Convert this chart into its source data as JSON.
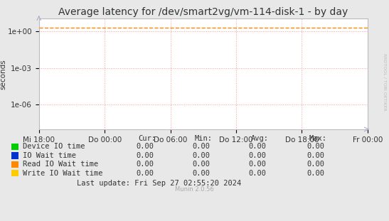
{
  "title": "Average latency for /dev/smart2vg/vm-114-disk-1 - by day",
  "ylabel": "seconds",
  "right_label": "RRDTOOL / TOBI OETIKER",
  "bg_color": "#e8e8e8",
  "plot_bg_color": "#ffffff",
  "grid_color": "#ff9999",
  "grid_linestyle": ":",
  "yticks": [
    1e-06,
    0.001,
    1.0
  ],
  "ytick_labels": [
    "1e-06",
    "1e-03",
    "1e+00"
  ],
  "xtick_labels": [
    "Mi 18:00",
    "Do 00:00",
    "Do 06:00",
    "Do 12:00",
    "Do 18:00",
    "Fr 00:00"
  ],
  "dashed_line_value": 2.0,
  "dashed_line_color": "#ff8800",
  "dashed_line_style": "--",
  "legend_entries": [
    {
      "label": "Device IO time",
      "color": "#00cc00"
    },
    {
      "label": "IO Wait time",
      "color": "#0033cc"
    },
    {
      "label": "Read IO Wait time",
      "color": "#ff8800"
    },
    {
      "label": "Write IO Wait time",
      "color": "#ffcc00"
    }
  ],
  "table_headers": [
    "Cur:",
    "Min:",
    "Avg:",
    "Max:"
  ],
  "table_values": [
    [
      0.0,
      0.0,
      0.0,
      0.0
    ],
    [
      0.0,
      0.0,
      0.0,
      0.0
    ],
    [
      0.0,
      0.0,
      0.0,
      0.0
    ],
    [
      0.0,
      0.0,
      0.0,
      0.0
    ]
  ],
  "last_update": "Last update: Fri Sep 27 02:55:20 2024",
  "munin_version": "Munin 2.0.56",
  "title_fontsize": 10,
  "axis_label_fontsize": 7.5,
  "legend_fontsize": 7.5,
  "tick_fontsize": 7.5
}
